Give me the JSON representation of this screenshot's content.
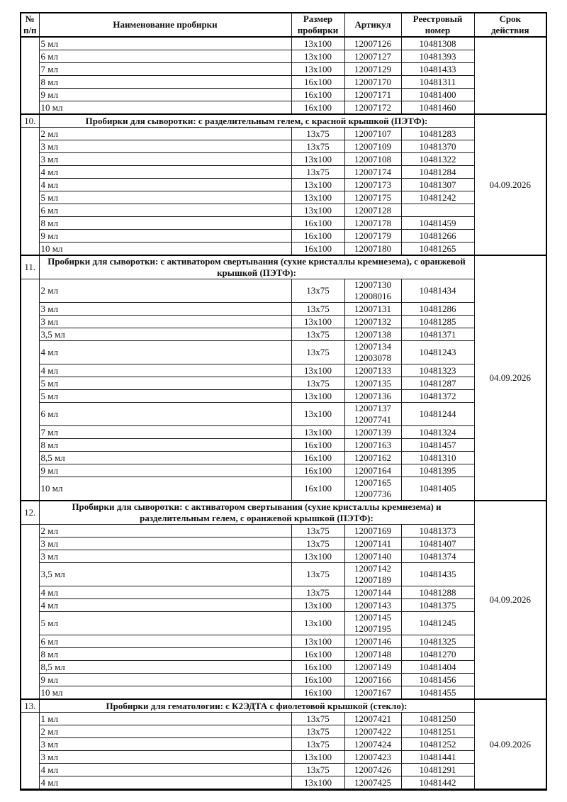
{
  "page": {
    "background_color": "#ffffff",
    "text_color": "#111111",
    "border_color": "#000000"
  },
  "table": {
    "columns": [
      {
        "key": "num",
        "label": "№\nп/п"
      },
      {
        "key": "name",
        "label": "Наименование пробирки"
      },
      {
        "key": "size",
        "label": "Размер\nпробирки"
      },
      {
        "key": "article",
        "label": "Артикул"
      },
      {
        "key": "registry",
        "label": "Реестровый\nномер"
      },
      {
        "key": "validity",
        "label": "Срок\nдействия"
      }
    ],
    "sections": [
      {
        "num": "",
        "title": "",
        "validity": "",
        "rows": [
          {
            "name": "5 мл",
            "size": "13x100",
            "articles": [
              "12007126"
            ],
            "registry": "10481308"
          },
          {
            "name": "6 мл",
            "size": "13x100",
            "articles": [
              "12007127"
            ],
            "registry": "10481393"
          },
          {
            "name": "7 мл",
            "size": "13x100",
            "articles": [
              "12007129"
            ],
            "registry": "10481433"
          },
          {
            "name": "8 мл",
            "size": "16x100",
            "articles": [
              "12007170"
            ],
            "registry": "10481311"
          },
          {
            "name": "9 мл",
            "size": "16x100",
            "articles": [
              "12007171"
            ],
            "registry": "10481400"
          },
          {
            "name": "10 мл",
            "size": "16x100",
            "articles": [
              "12007172"
            ],
            "registry": "10481460"
          }
        ]
      },
      {
        "num": "10.",
        "title": "Пробирки для сыворотки: с разделительным гелем, с красной крышкой (ПЭТФ):",
        "validity": "04.09.2026",
        "rows": [
          {
            "name": "2 мл",
            "size": "13x75",
            "articles": [
              "12007107"
            ],
            "registry": "10481283"
          },
          {
            "name": "3 мл",
            "size": "13x75",
            "articles": [
              "12007109"
            ],
            "registry": "10481370"
          },
          {
            "name": "3 мл",
            "size": "13x100",
            "articles": [
              "12007108"
            ],
            "registry": "10481322"
          },
          {
            "name": "4 мл",
            "size": "13x75",
            "articles": [
              "12007174"
            ],
            "registry": "10481284"
          },
          {
            "name": "4 мл",
            "size": "13x100",
            "articles": [
              "12007173"
            ],
            "registry": "10481307"
          },
          {
            "name": "5 мл",
            "size": "13x100",
            "articles": [
              "12007175"
            ],
            "registry": "10481242"
          },
          {
            "name": "6 мл",
            "size": "13x100",
            "articles": [
              "12007128"
            ],
            "registry": ""
          },
          {
            "name": "8 мл",
            "size": "16x100",
            "articles": [
              "12007178"
            ],
            "registry": "10481459"
          },
          {
            "name": "9 мл",
            "size": "16x100",
            "articles": [
              "12007179"
            ],
            "registry": "10481266"
          },
          {
            "name": "10 мл",
            "size": "16x100",
            "articles": [
              "12007180"
            ],
            "registry": "10481265"
          }
        ]
      },
      {
        "num": "11.",
        "title": "Пробирки для сыворотки: с активатором свертывания (сухие кристаллы кремнезема), с оранжевой крышкой (ПЭТФ):",
        "validity": "04.09.2026",
        "rows": [
          {
            "name": "2 мл",
            "size": "13x75",
            "articles": [
              "12007130",
              "12008016"
            ],
            "registry": "10481434"
          },
          {
            "name": "3 мл",
            "size": "13x75",
            "articles": [
              "12007131"
            ],
            "registry": "10481286"
          },
          {
            "name": "3 мл",
            "size": "13x100",
            "articles": [
              "12007132"
            ],
            "registry": "10481285"
          },
          {
            "name": "3,5 мл",
            "size": "13x75",
            "articles": [
              "12007138"
            ],
            "registry": "10481371"
          },
          {
            "name": "4 мл",
            "size": "13x75",
            "articles": [
              "12007134",
              "12003078"
            ],
            "registry": "10481243"
          },
          {
            "name": "4 мл",
            "size": "13x100",
            "articles": [
              "12007133"
            ],
            "registry": "10481323"
          },
          {
            "name": "5 мл",
            "size": "13x75",
            "articles": [
              "12007135"
            ],
            "registry": "10481287"
          },
          {
            "name": "5 мл",
            "size": "13x100",
            "articles": [
              "12007136"
            ],
            "registry": "10481372"
          },
          {
            "name": "6 мл",
            "size": "13x100",
            "articles": [
              "12007137",
              "12007741"
            ],
            "registry": "10481244"
          },
          {
            "name": "7 мл",
            "size": "13x100",
            "articles": [
              "12007139"
            ],
            "registry": "10481324"
          },
          {
            "name": "8 мл",
            "size": "16x100",
            "articles": [
              "12007163"
            ],
            "registry": "10481457"
          },
          {
            "name": "8,5 мл",
            "size": "16x100",
            "articles": [
              "12007162"
            ],
            "registry": "10481310"
          },
          {
            "name": "9 мл",
            "size": "16x100",
            "articles": [
              "12007164"
            ],
            "registry": "10481395"
          },
          {
            "name": "10 мл",
            "size": "16x100",
            "articles": [
              "12007165",
              "12007736"
            ],
            "registry": "10481405"
          }
        ]
      },
      {
        "num": "12.",
        "title": "Пробирки для сыворотки: с активатором свертывания (сухие кристаллы кремнезема) и разделительным гелем, с оранжевой крышкой (ПЭТФ):",
        "validity": "04.09.2026",
        "rows": [
          {
            "name": "2 мл",
            "size": "13x75",
            "articles": [
              "12007169"
            ],
            "registry": "10481373"
          },
          {
            "name": "3 мл",
            "size": "13x75",
            "articles": [
              "12007141"
            ],
            "registry": "10481407"
          },
          {
            "name": "3 мл",
            "size": "13x100",
            "articles": [
              "12007140"
            ],
            "registry": "10481374"
          },
          {
            "name": "3,5 мл",
            "size": "13x75",
            "articles": [
              "12007142",
              "12007189"
            ],
            "registry": "10481435"
          },
          {
            "name": "4 мл",
            "size": "13x75",
            "articles": [
              "12007144"
            ],
            "registry": "10481288"
          },
          {
            "name": "4 мл",
            "size": "13x100",
            "articles": [
              "12007143"
            ],
            "registry": "10481375"
          },
          {
            "name": "5 мл",
            "size": "13x100",
            "articles": [
              "12007145",
              "12007195"
            ],
            "registry": "10481245"
          },
          {
            "name": "6 мл",
            "size": "13x100",
            "articles": [
              "12007146"
            ],
            "registry": "10481325"
          },
          {
            "name": "8 мл",
            "size": "16x100",
            "articles": [
              "12007148"
            ],
            "registry": "10481270"
          },
          {
            "name": "8,5 мл",
            "size": "16x100",
            "articles": [
              "12007149"
            ],
            "registry": "10481404"
          },
          {
            "name": "9 мл",
            "size": "16x100",
            "articles": [
              "12007166"
            ],
            "registry": "10481456"
          },
          {
            "name": "10 мл",
            "size": "16x100",
            "articles": [
              "12007167"
            ],
            "registry": "10481455"
          }
        ]
      },
      {
        "num": "13.",
        "title": "Пробирки для гематологии: с К2ЭДТА с фиолетовой крышкой (стекло):",
        "validity": "04.09.2026",
        "rows": [
          {
            "name": "1 мл",
            "size": "13x75",
            "articles": [
              "12007421"
            ],
            "registry": "10481250"
          },
          {
            "name": "2 мл",
            "size": "13x75",
            "articles": [
              "12007422"
            ],
            "registry": "10481251"
          },
          {
            "name": "3 мл",
            "size": "13x75",
            "articles": [
              "12007424"
            ],
            "registry": "10481252"
          },
          {
            "name": "3 мл",
            "size": "13x100",
            "articles": [
              "12007423"
            ],
            "registry": "10481441"
          },
          {
            "name": "4 мл",
            "size": "13x75",
            "articles": [
              "12007426"
            ],
            "registry": "10481291"
          },
          {
            "name": "4 мл",
            "size": "13x100",
            "articles": [
              "12007425"
            ],
            "registry": "10481442"
          }
        ]
      }
    ]
  }
}
